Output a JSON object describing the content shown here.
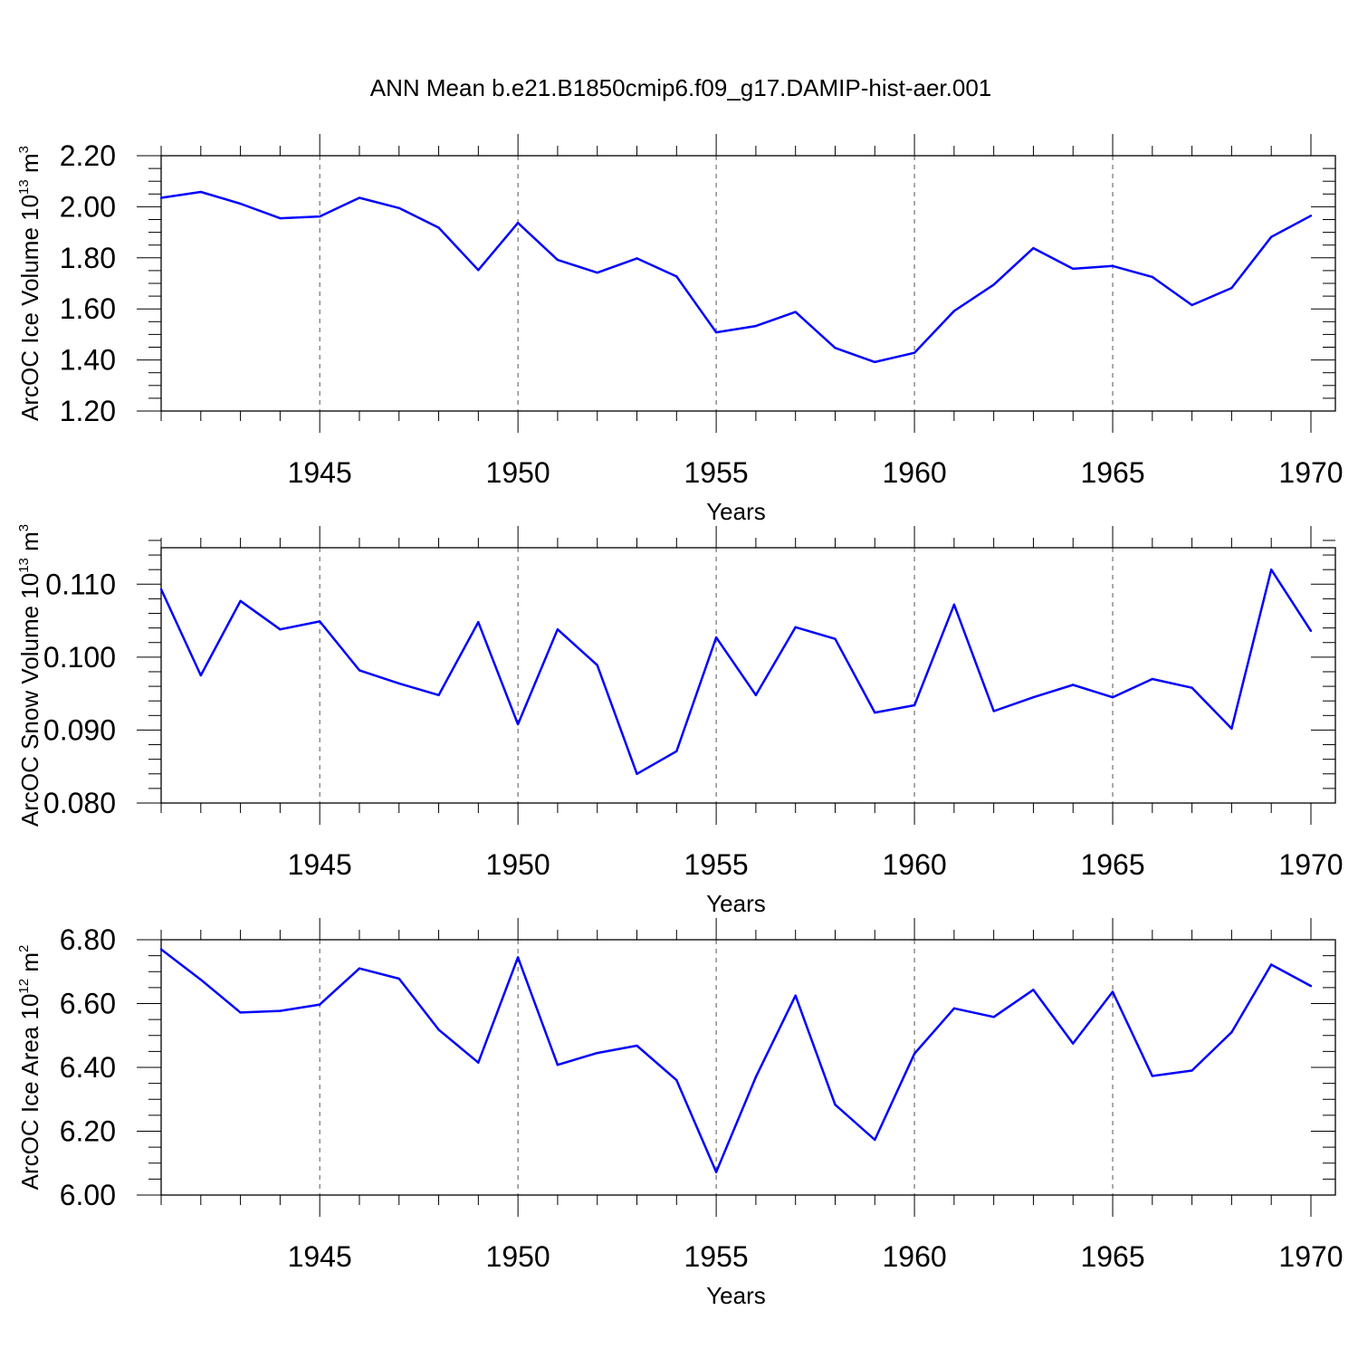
{
  "title": "ANN Mean b.e21.B1850cmip6.f09_g17.DAMIP-hist-aer.001",
  "line_color": "#0000ff",
  "chart_data": [
    {
      "type": "line",
      "xlabel": "Years",
      "ylabel": {
        "text": "ArcOC Ice Volume 10",
        "exp": "13",
        "unit": " m",
        "unit_exp": "3"
      },
      "xlim": [
        1941,
        1970
      ],
      "ylim": [
        1.2,
        2.2
      ],
      "xticks": [
        1945,
        1950,
        1955,
        1960,
        1965,
        1970
      ],
      "xtick_labels": [
        "1945",
        "1950",
        "1955",
        "1960",
        "1965",
        "1970"
      ],
      "yticks": [
        1.2,
        1.4,
        1.6,
        1.8,
        2.0,
        2.2
      ],
      "ytick_labels": [
        "1.20",
        "1.40",
        "1.60",
        "1.80",
        "2.00",
        "2.20"
      ],
      "yminor_step": 0.05,
      "grid": "dashed vertical at major x ticks",
      "x": [
        1941,
        1942,
        1943,
        1944,
        1945,
        1946,
        1947,
        1948,
        1949,
        1950,
        1951,
        1952,
        1953,
        1954,
        1955,
        1956,
        1957,
        1958,
        1959,
        1960,
        1961,
        1962,
        1963,
        1964,
        1965,
        1966,
        1967,
        1968,
        1969,
        1970
      ],
      "values": [
        2.035,
        2.058,
        2.012,
        1.955,
        1.962,
        2.035,
        1.995,
        1.918,
        1.752,
        1.937,
        1.792,
        1.742,
        1.798,
        1.727,
        1.508,
        1.533,
        1.588,
        1.447,
        1.392,
        1.428,
        1.592,
        1.695,
        1.838,
        1.757,
        1.768,
        1.725,
        1.615,
        1.682,
        1.882,
        1.965
      ]
    },
    {
      "type": "line",
      "xlabel": "Years",
      "ylabel": {
        "text": "ArcOC Snow Volume 10",
        "exp": "13",
        "unit": " m",
        "unit_exp": "3"
      },
      "xlim": [
        1941,
        1970
      ],
      "ylim": [
        0.08,
        0.115
      ],
      "xticks": [
        1945,
        1950,
        1955,
        1960,
        1965,
        1970
      ],
      "xtick_labels": [
        "1945",
        "1950",
        "1955",
        "1960",
        "1965",
        "1970"
      ],
      "yticks": [
        0.08,
        0.09,
        0.1,
        0.11
      ],
      "ytick_labels": [
        "0.080",
        "0.090",
        "0.100",
        "0.110"
      ],
      "yminor_step": 0.002,
      "grid": "dashed vertical at major x ticks",
      "x": [
        1941,
        1942,
        1943,
        1944,
        1945,
        1946,
        1947,
        1948,
        1949,
        1950,
        1951,
        1952,
        1953,
        1954,
        1955,
        1956,
        1957,
        1958,
        1959,
        1960,
        1961,
        1962,
        1963,
        1964,
        1965,
        1966,
        1967,
        1968,
        1969,
        1970
      ],
      "values": [
        0.1093,
        0.0975,
        0.1077,
        0.1038,
        0.1049,
        0.0982,
        0.0964,
        0.0948,
        0.1048,
        0.0908,
        0.1038,
        0.0989,
        0.084,
        0.0871,
        0.1027,
        0.0948,
        0.1041,
        0.1025,
        0.0924,
        0.0934,
        0.1072,
        0.0926,
        0.0945,
        0.0962,
        0.0945,
        0.097,
        0.0958,
        0.0902,
        0.112,
        0.1036
      ]
    },
    {
      "type": "line",
      "xlabel": "Years",
      "ylabel": {
        "text": "ArcOC Ice Area 10",
        "exp": "12",
        "unit": " m",
        "unit_exp": "2"
      },
      "xlim": [
        1941,
        1970
      ],
      "ylim": [
        6.0,
        6.8
      ],
      "xticks": [
        1945,
        1950,
        1955,
        1960,
        1965,
        1970
      ],
      "xtick_labels": [
        "1945",
        "1950",
        "1955",
        "1960",
        "1965",
        "1970"
      ],
      "yticks": [
        6.0,
        6.2,
        6.4,
        6.6,
        6.8
      ],
      "ytick_labels": [
        "6.00",
        "6.20",
        "6.40",
        "6.60",
        "6.80"
      ],
      "yminor_step": 0.05,
      "grid": "dashed vertical at major x ticks",
      "x": [
        1941,
        1942,
        1943,
        1944,
        1945,
        1946,
        1947,
        1948,
        1949,
        1950,
        1951,
        1952,
        1953,
        1954,
        1955,
        1956,
        1957,
        1958,
        1959,
        1960,
        1961,
        1962,
        1963,
        1964,
        1965,
        1966,
        1967,
        1968,
        1969,
        1970
      ],
      "values": [
        6.77,
        6.675,
        6.572,
        6.577,
        6.597,
        6.71,
        6.678,
        6.518,
        6.415,
        6.745,
        6.408,
        6.445,
        6.468,
        6.36,
        6.072,
        6.37,
        6.625,
        6.283,
        6.173,
        6.443,
        6.585,
        6.558,
        6.643,
        6.475,
        6.637,
        6.373,
        6.39,
        6.51,
        6.722,
        6.655
      ]
    }
  ]
}
